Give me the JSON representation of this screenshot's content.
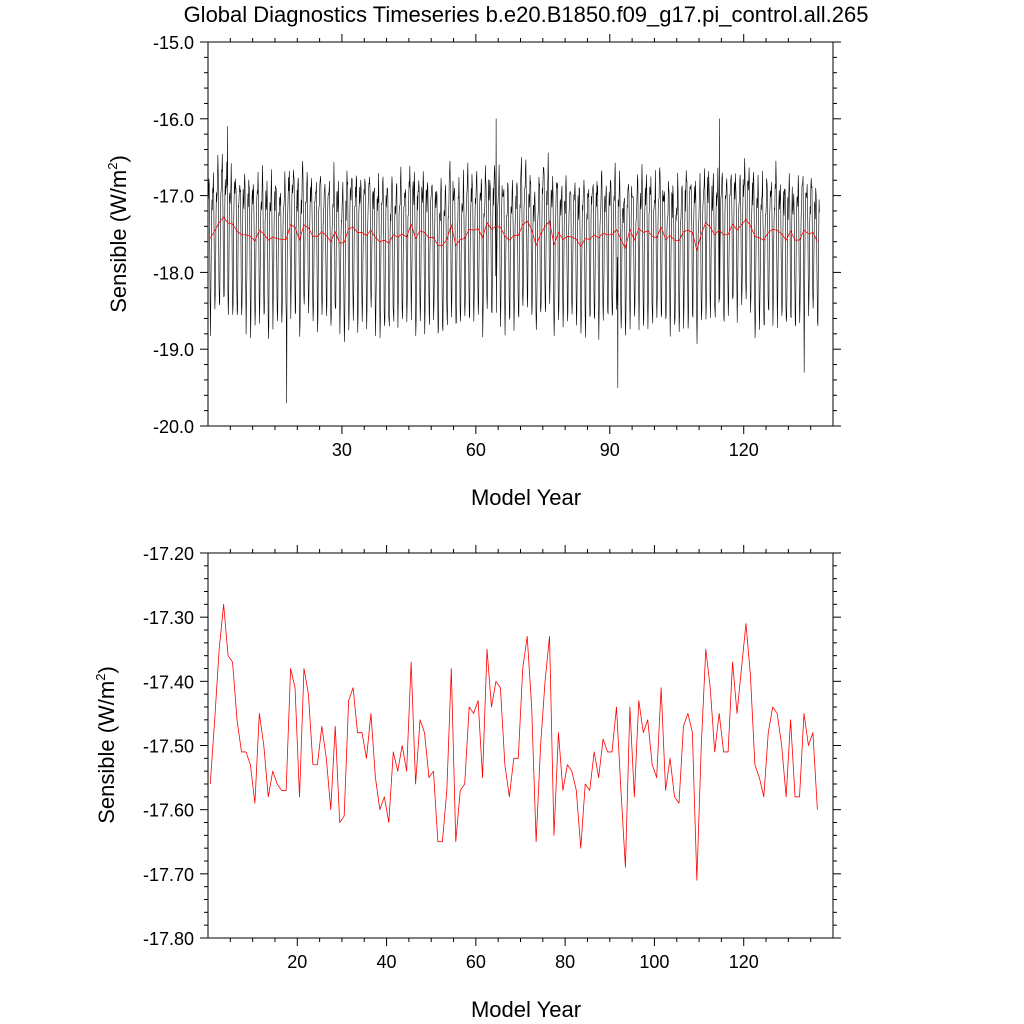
{
  "title": "Global Diagnostics Timeseries b.e20.B1850.f09_g17.pi_control.all.265",
  "chart_data": [
    {
      "type": "line",
      "ylabel_main": "Sensible (W/m",
      "ylabel_sup": "2",
      "ylabel_close": ")",
      "xlabel": "Model Year",
      "xlim": [
        0,
        140
      ],
      "ylim": [
        -20.0,
        -15.0
      ],
      "xticks": [
        30,
        60,
        90,
        120
      ],
      "yticks": [
        -20.0,
        -19.0,
        -18.0,
        -17.0,
        -16.0,
        -15.0
      ],
      "ytick_labels": [
        "-20.0",
        "-19.0",
        "-18.0",
        "-17.0",
        "-16.0",
        "-15.0"
      ],
      "grid": false,
      "series": [
        {
          "color": "#000000",
          "description": "monthly values 0-140, seasonal oscillation between about -16.5 and -18.8",
          "max_points": [
            [
              4.4,
              -16.1
            ],
            [
              64.5,
              -16.0
            ],
            [
              114.5,
              -16.0
            ]
          ],
          "min_points": [
            [
              17.6,
              -19.7
            ],
            [
              91.8,
              -19.5
            ],
            [
              133.5,
              -19.3
            ]
          ]
        },
        {
          "color": "#ff0000",
          "values_ref": "annual_mean"
        }
      ]
    },
    {
      "type": "line",
      "ylabel_main": "Sensible (W/m",
      "ylabel_sup": "2",
      "ylabel_close": ")",
      "xlabel": "Model Year",
      "xlim": [
        0,
        140
      ],
      "ylim": [
        -17.8,
        -17.2
      ],
      "xticks": [
        20,
        40,
        60,
        80,
        100,
        120
      ],
      "yticks": [
        -17.8,
        -17.7,
        -17.6,
        -17.5,
        -17.4,
        -17.3,
        -17.2
      ],
      "ytick_labels": [
        "-17.80",
        "-17.70",
        "-17.60",
        "-17.50",
        "-17.40",
        "-17.30",
        "-17.20"
      ],
      "grid": false,
      "series": [
        {
          "color": "#ff0000",
          "x_start": 0.5,
          "x_step": 1,
          "values": [
            -17.56,
            -17.46,
            -17.35,
            -17.28,
            -17.36,
            -17.37,
            -17.46,
            -17.51,
            -17.51,
            -17.53,
            -17.59,
            -17.45,
            -17.5,
            -17.58,
            -17.54,
            -17.56,
            -17.57,
            -17.57,
            -17.38,
            -17.41,
            -17.58,
            -17.38,
            -17.42,
            -17.53,
            -17.53,
            -17.47,
            -17.52,
            -17.6,
            -17.47,
            -17.62,
            -17.61,
            -17.43,
            -17.41,
            -17.48,
            -17.48,
            -17.52,
            -17.45,
            -17.55,
            -17.6,
            -17.58,
            -17.62,
            -17.51,
            -17.54,
            -17.5,
            -17.54,
            -17.37,
            -17.56,
            -17.46,
            -17.48,
            -17.55,
            -17.54,
            -17.65,
            -17.65,
            -17.57,
            -17.38,
            -17.65,
            -17.57,
            -17.56,
            -17.44,
            -17.45,
            -17.43,
            -17.55,
            -17.35,
            -17.44,
            -17.4,
            -17.41,
            -17.53,
            -17.58,
            -17.52,
            -17.52,
            -17.38,
            -17.33,
            -17.44,
            -17.65,
            -17.5,
            -17.4,
            -17.33,
            -17.64,
            -17.48,
            -17.57,
            -17.53,
            -17.54,
            -17.57,
            -17.66,
            -17.56,
            -17.57,
            -17.51,
            -17.55,
            -17.49,
            -17.51,
            -17.51,
            -17.44,
            -17.57,
            -17.69,
            -17.44,
            -17.58,
            -17.43,
            -17.48,
            -17.46,
            -17.53,
            -17.55,
            -17.41,
            -17.57,
            -17.52,
            -17.58,
            -17.59,
            -17.47,
            -17.45,
            -17.48,
            -17.71,
            -17.5,
            -17.35,
            -17.41,
            -17.51,
            -17.45,
            -17.51,
            -17.51,
            -17.37,
            -17.45,
            -17.38,
            -17.31,
            -17.39,
            -17.53,
            -17.55,
            -17.58,
            -17.48,
            -17.44,
            -17.45,
            -17.5,
            -17.58,
            -17.46,
            -17.58,
            -17.58,
            -17.45,
            -17.5,
            -17.48,
            -17.6
          ]
        }
      ]
    }
  ]
}
